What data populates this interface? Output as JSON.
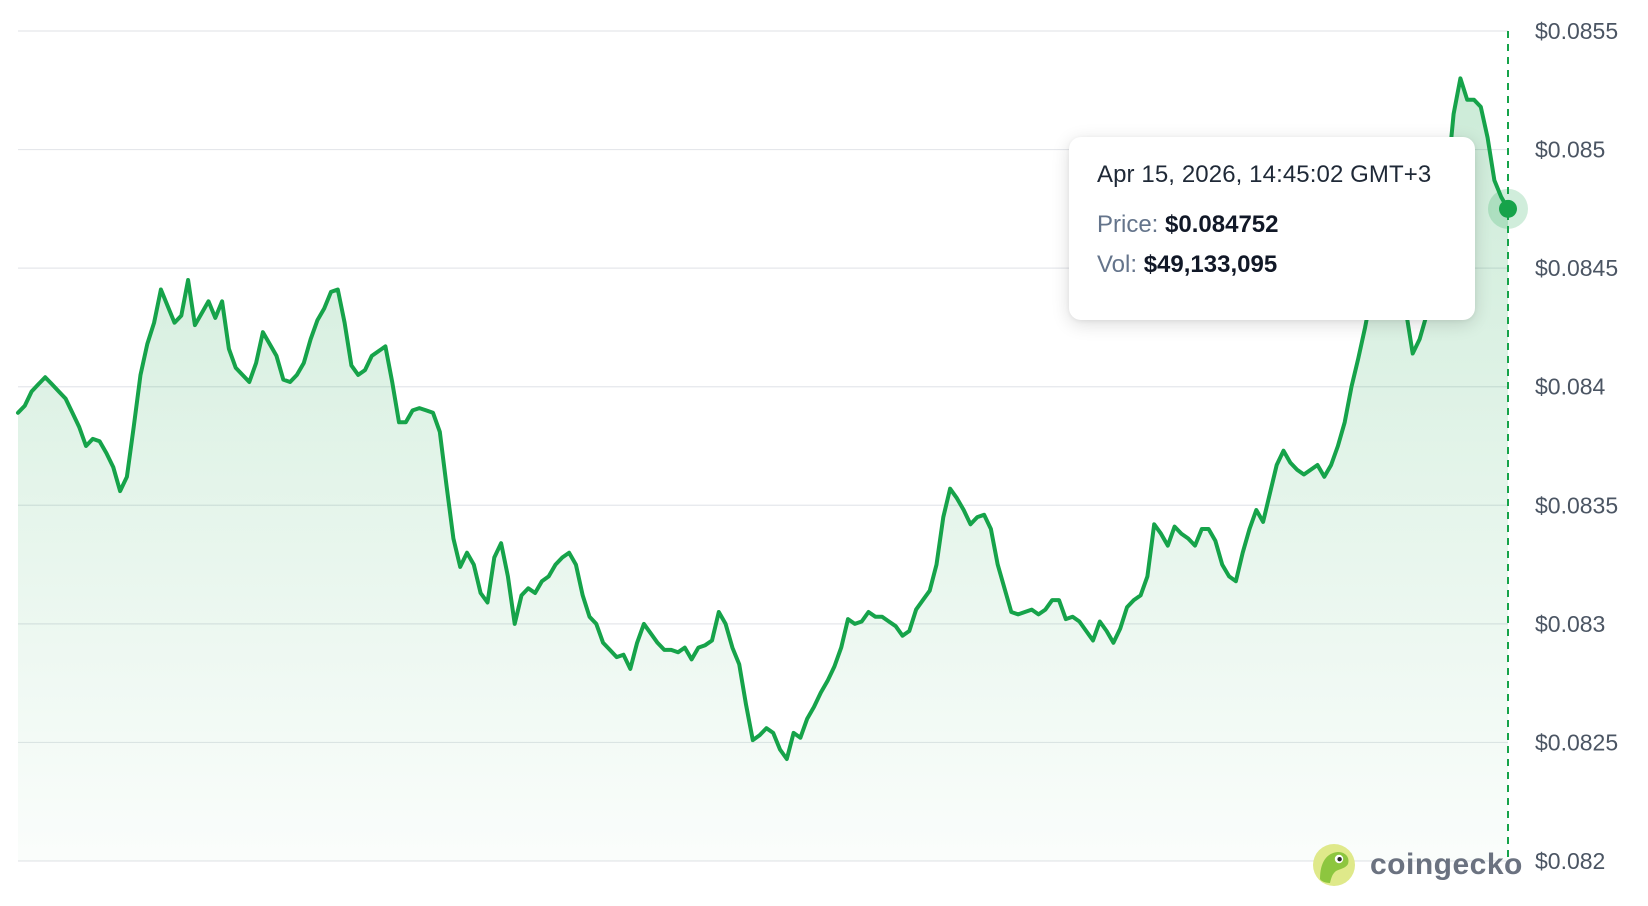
{
  "chart_data": {
    "type": "area",
    "title": "",
    "xlabel": "",
    "ylabel": "",
    "ylim": [
      0.082,
      0.0855
    ],
    "y_ticks": [
      0.082,
      0.0825,
      0.083,
      0.0835,
      0.084,
      0.0845,
      0.085,
      0.0855
    ],
    "y_tick_labels": [
      "$0.082",
      "$0.0825",
      "$0.083",
      "$0.0835",
      "$0.084",
      "$0.0845",
      "$0.085",
      "$0.0855"
    ],
    "grid": true,
    "legend": "none",
    "series": [
      {
        "values": [
          0.08389,
          0.08392,
          0.08398,
          0.08401,
          0.08404,
          0.08401,
          0.08398,
          0.08395,
          0.08389,
          0.08383,
          0.08375,
          0.08378,
          0.08377,
          0.08372,
          0.08366,
          0.08356,
          0.08362,
          0.08383,
          0.08405,
          0.08418,
          0.08427,
          0.08441,
          0.08434,
          0.08427,
          0.0843,
          0.08445,
          0.08426,
          0.08431,
          0.08436,
          0.08429,
          0.08436,
          0.08416,
          0.08408,
          0.08405,
          0.08402,
          0.0841,
          0.08423,
          0.08418,
          0.08413,
          0.08403,
          0.08402,
          0.08405,
          0.0841,
          0.0842,
          0.08428,
          0.08433,
          0.0844,
          0.08441,
          0.08427,
          0.08409,
          0.08405,
          0.08407,
          0.08413,
          0.08415,
          0.08417,
          0.08402,
          0.08385,
          0.08385,
          0.0839,
          0.08391,
          0.0839,
          0.08389,
          0.08381,
          0.08358,
          0.08336,
          0.08324,
          0.0833,
          0.08325,
          0.08313,
          0.08309,
          0.08328,
          0.08334,
          0.0832,
          0.083,
          0.08312,
          0.08315,
          0.08313,
          0.08318,
          0.0832,
          0.08325,
          0.08328,
          0.0833,
          0.08325,
          0.08312,
          0.08303,
          0.083,
          0.08292,
          0.08289,
          0.08286,
          0.08287,
          0.08281,
          0.08292,
          0.083,
          0.08296,
          0.08292,
          0.08289,
          0.08289,
          0.08288,
          0.0829,
          0.08285,
          0.0829,
          0.08291,
          0.08293,
          0.08305,
          0.083,
          0.0829,
          0.08283,
          0.08266,
          0.08251,
          0.08253,
          0.08256,
          0.08254,
          0.08247,
          0.08243,
          0.08254,
          0.08252,
          0.0826,
          0.08265,
          0.08271,
          0.08276,
          0.08282,
          0.0829,
          0.08302,
          0.083,
          0.08301,
          0.08305,
          0.08303,
          0.08303,
          0.08301,
          0.08299,
          0.08295,
          0.08297,
          0.08306,
          0.0831,
          0.08314,
          0.08325,
          0.08345,
          0.08357,
          0.08353,
          0.08348,
          0.08342,
          0.08345,
          0.08346,
          0.0834,
          0.08325,
          0.08315,
          0.08305,
          0.08304,
          0.08305,
          0.08306,
          0.08304,
          0.08306,
          0.0831,
          0.0831,
          0.08302,
          0.08303,
          0.08301,
          0.08297,
          0.08293,
          0.08301,
          0.08297,
          0.08292,
          0.08298,
          0.08307,
          0.0831,
          0.08312,
          0.0832,
          0.08342,
          0.08338,
          0.08333,
          0.08341,
          0.08338,
          0.08336,
          0.08333,
          0.0834,
          0.0834,
          0.08335,
          0.08325,
          0.0832,
          0.08318,
          0.0833,
          0.0834,
          0.08348,
          0.08343,
          0.08355,
          0.08367,
          0.08373,
          0.08368,
          0.08365,
          0.08363,
          0.08365,
          0.08367,
          0.08362,
          0.08367,
          0.08375,
          0.08385,
          0.084,
          0.08412,
          0.08425,
          0.0844,
          0.08455,
          0.08465,
          0.0846,
          0.08453,
          0.08432,
          0.08414,
          0.0842,
          0.0843,
          0.08445,
          0.0846,
          0.08485,
          0.08515,
          0.0853,
          0.08521,
          0.08521,
          0.08518,
          0.08505,
          0.08487,
          0.0848,
          0.08475
        ]
      }
    ],
    "x_start": "",
    "x_end": "Apr 15, 2026, 14:45:02 GMT+3",
    "line_color": "#16a34a",
    "fill_color": "#16a34a"
  },
  "tooltip": {
    "date": "Apr 15, 2026, 14:45:02 GMT+3",
    "price_label": "Price:",
    "price_value": "$0.084752",
    "vol_label": "Vol:",
    "vol_value": "$49,133,095"
  },
  "brand": {
    "name": "coingecko",
    "logo_icon": "gecko-icon"
  }
}
